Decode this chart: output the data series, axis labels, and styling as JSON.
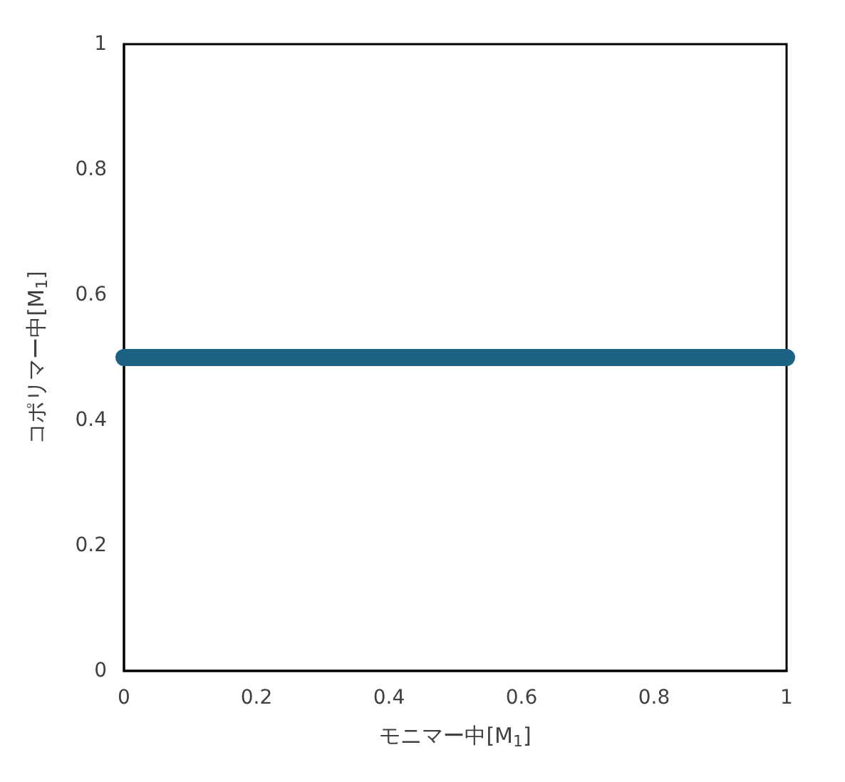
{
  "chart_data": {
    "type": "line",
    "xlabel": "モニマー中[M$_{1}$]",
    "ylabel": "コポリマー中[M$_{1}$]",
    "x": [
      0,
      1
    ],
    "series": [
      {
        "color": "#1b6283",
        "values": [
          0.5,
          0.5
        ]
      }
    ],
    "xlim": [
      0,
      1
    ],
    "xticks": [
      0,
      0.2,
      0.4,
      0.6,
      0.8,
      1
    ],
    "ylim": [
      0,
      1
    ],
    "yticks": [
      0,
      0.2,
      0.4,
      0.6,
      0.8,
      1
    ],
    "grid": false,
    "line_style": "solid"
  }
}
